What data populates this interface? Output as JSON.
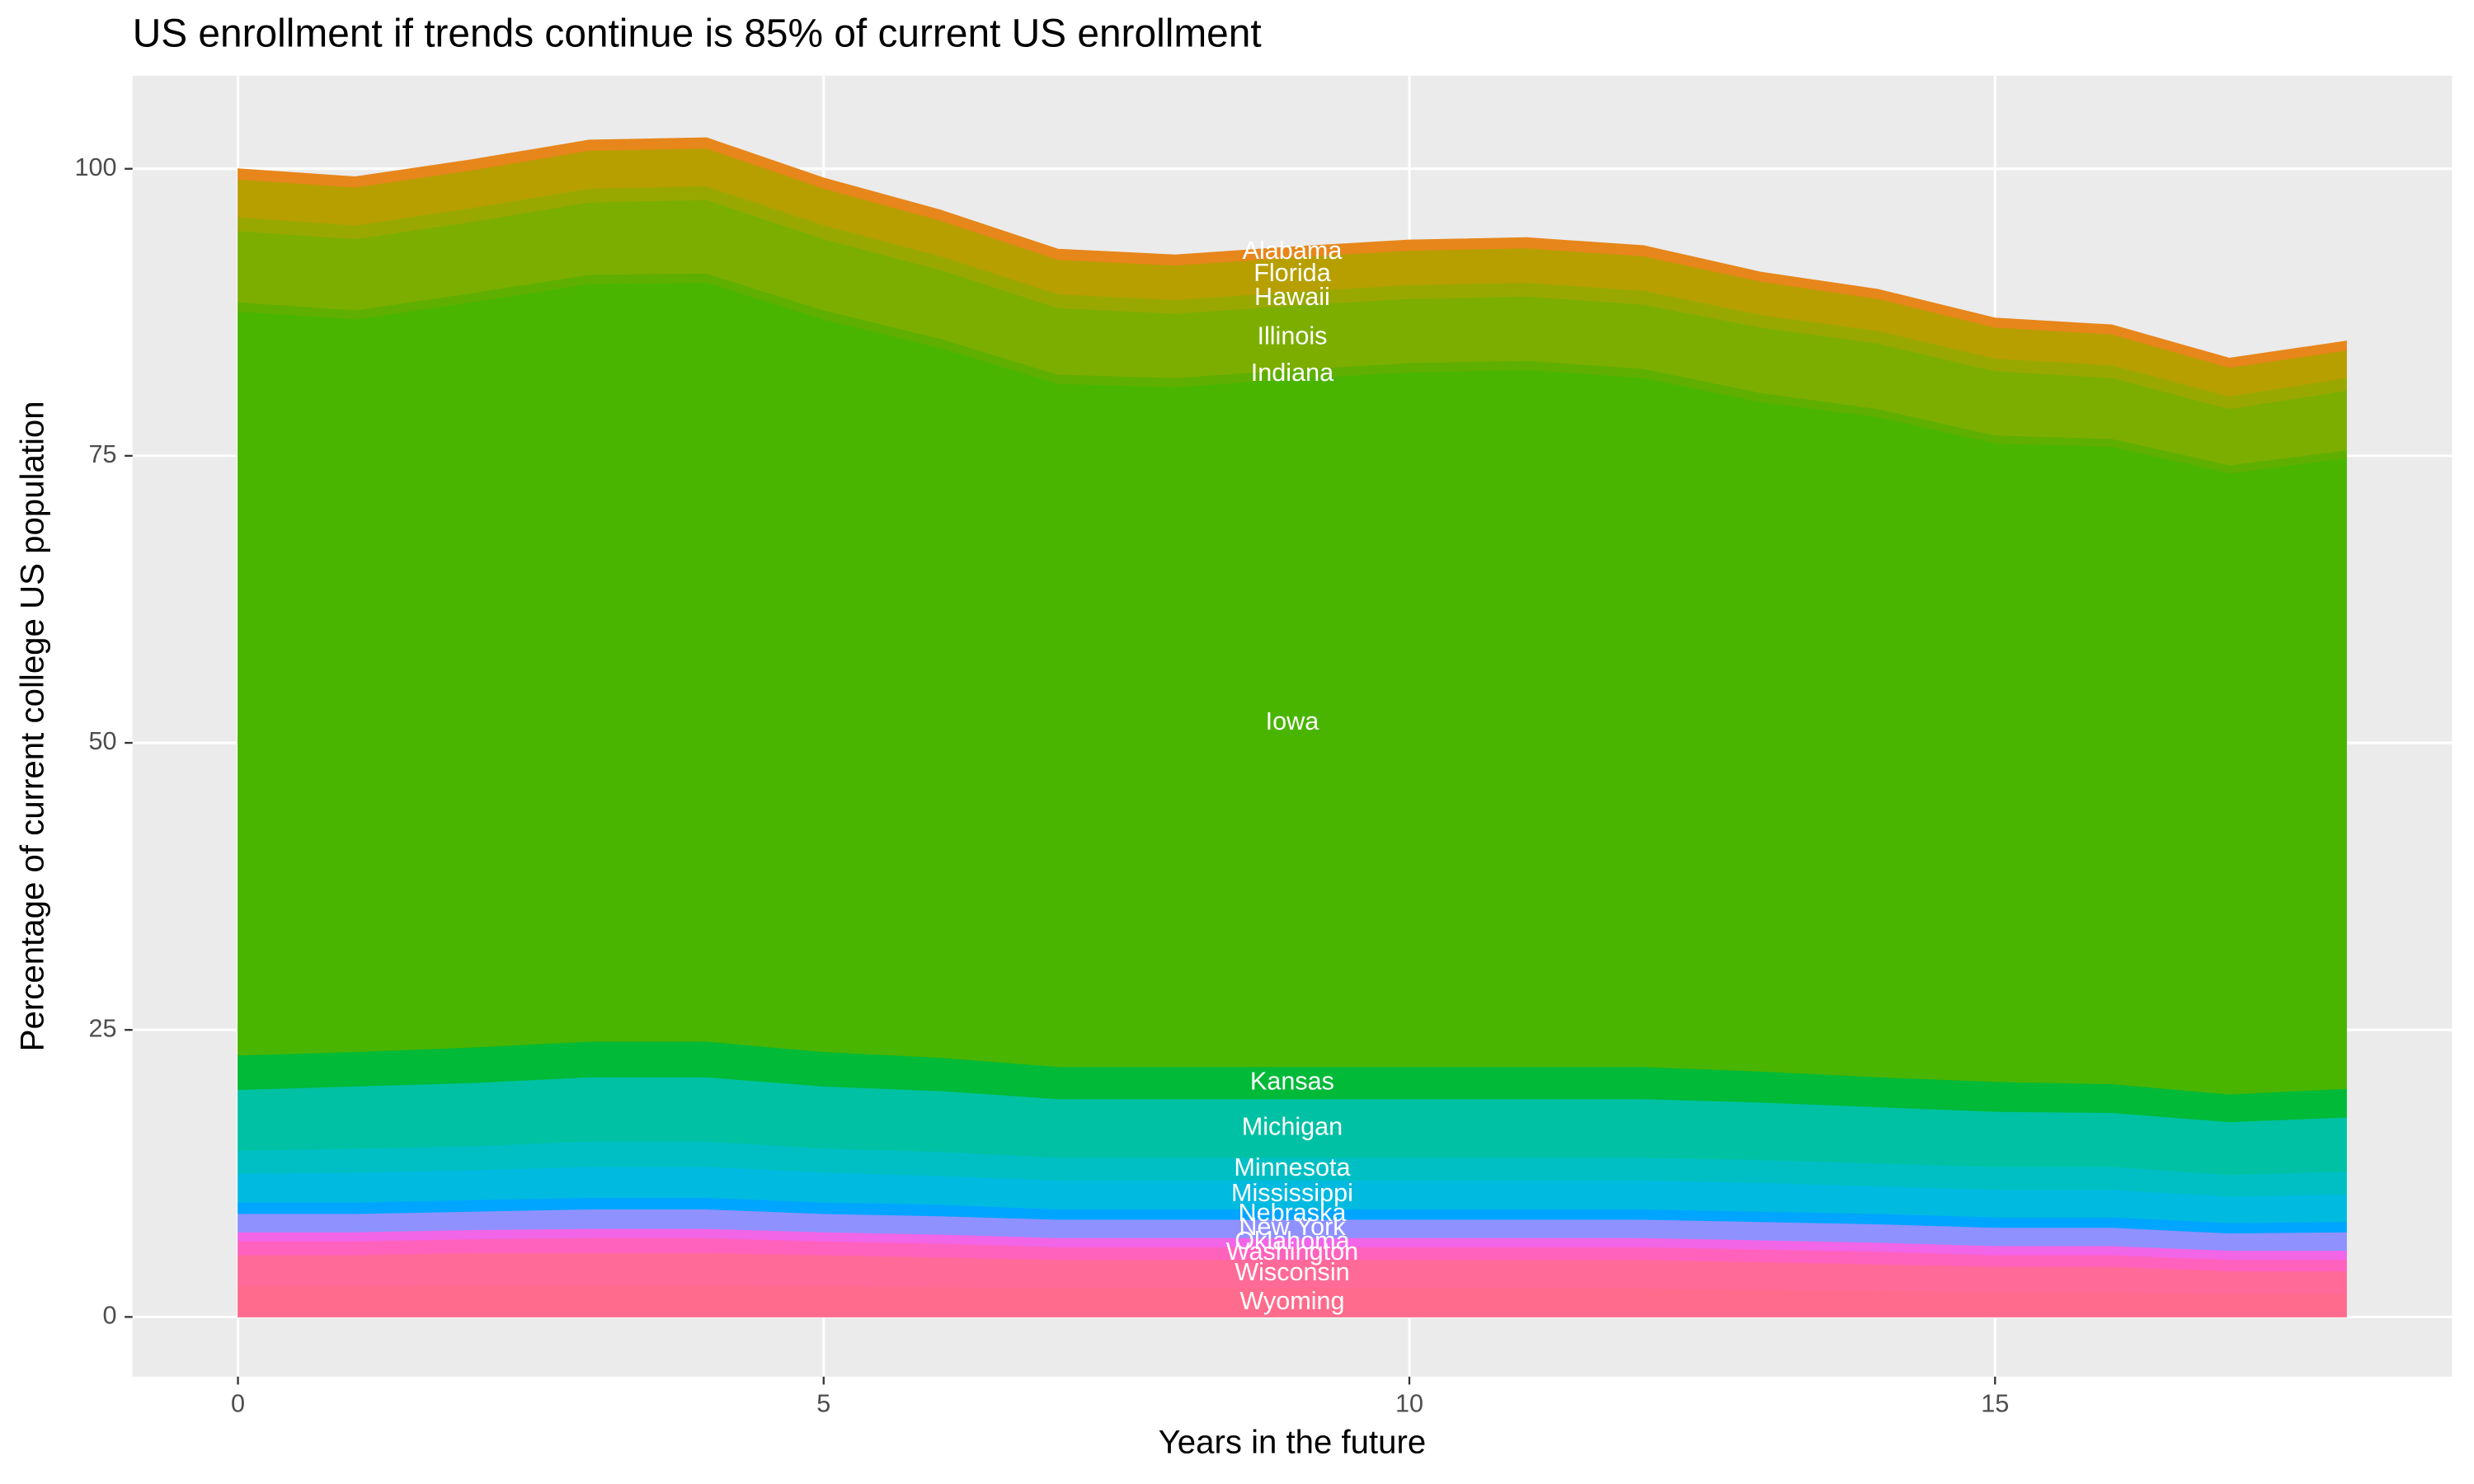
{
  "chart_data": {
    "type": "stacked_area",
    "title": "US enrollment if trends continue is 85% of current US enrollment",
    "x_label": "Years in the future",
    "y_label": "Percentage of current college US population",
    "x": [
      0,
      1,
      2,
      3,
      4,
      5,
      6,
      7,
      8,
      9,
      10,
      11,
      12,
      13,
      14,
      15,
      16,
      17,
      18
    ],
    "xlim": [
      -0.9,
      18.9
    ],
    "xticks": [
      0,
      5,
      10,
      15
    ],
    "ylim": [
      -5.2,
      108.1
    ],
    "yticks": [
      0,
      25,
      50,
      75,
      100
    ],
    "grid": true,
    "series": [
      {
        "name": "Wyoming",
        "color": "#FF6B8C",
        "values": [
          2.7,
          2.7,
          2.8,
          2.8,
          2.8,
          2.7,
          2.6,
          2.5,
          2.5,
          2.5,
          2.5,
          2.5,
          2.5,
          2.4,
          2.3,
          2.2,
          2.2,
          2.0,
          2.0
        ]
      },
      {
        "name": "Wisconsin",
        "color": "#FF6A98",
        "values": [
          2.7,
          2.7,
          2.8,
          2.8,
          2.8,
          2.7,
          2.6,
          2.5,
          2.5,
          2.5,
          2.5,
          2.5,
          2.5,
          2.4,
          2.3,
          2.2,
          2.2,
          2.0,
          2.0
        ]
      },
      {
        "name": "Washington",
        "color": "#FF62BC",
        "values": [
          1.2,
          1.2,
          1.2,
          1.3,
          1.3,
          1.2,
          1.2,
          1.1,
          1.1,
          1.1,
          1.1,
          1.1,
          1.1,
          1.1,
          1.1,
          1.0,
          1.0,
          1.0,
          1.0
        ]
      },
      {
        "name": "Oklahoma",
        "color": "#F265E7",
        "values": [
          0.8,
          0.8,
          0.8,
          0.8,
          0.8,
          0.8,
          0.8,
          0.8,
          0.8,
          0.8,
          0.8,
          0.8,
          0.8,
          0.8,
          0.8,
          0.8,
          0.8,
          0.8,
          0.8
        ]
      },
      {
        "name": "New York",
        "color": "#8F91FF",
        "values": [
          1.6,
          1.6,
          1.6,
          1.7,
          1.7,
          1.6,
          1.6,
          1.6,
          1.6,
          1.6,
          1.6,
          1.6,
          1.6,
          1.6,
          1.6,
          1.6,
          1.6,
          1.5,
          1.6
        ]
      },
      {
        "name": "Nebraska",
        "color": "#00A5FF",
        "values": [
          1.0,
          1.0,
          1.0,
          1.0,
          1.0,
          1.0,
          1.0,
          0.9,
          0.9,
          0.9,
          0.9,
          0.9,
          0.9,
          0.9,
          0.9,
          0.9,
          0.9,
          0.9,
          0.9
        ]
      },
      {
        "name": "Mississippi",
        "color": "#00BAE0",
        "values": [
          2.5,
          2.6,
          2.6,
          2.7,
          2.7,
          2.6,
          2.5,
          2.5,
          2.5,
          2.5,
          2.5,
          2.5,
          2.5,
          2.5,
          2.4,
          2.4,
          2.4,
          2.3,
          2.4
        ]
      },
      {
        "name": "Minnesota",
        "color": "#00BFC4",
        "values": [
          2.0,
          2.1,
          2.1,
          2.2,
          2.2,
          2.1,
          2.1,
          2.0,
          2.0,
          2.0,
          2.0,
          2.0,
          2.0,
          2.0,
          2.0,
          2.0,
          2.0,
          1.9,
          2.0
        ]
      },
      {
        "name": "Michigan",
        "color": "#00C1A3",
        "values": [
          5.3,
          5.4,
          5.5,
          5.6,
          5.6,
          5.4,
          5.3,
          5.1,
          5.1,
          5.1,
          5.1,
          5.1,
          5.1,
          5.0,
          4.9,
          4.8,
          4.7,
          4.6,
          4.7
        ]
      },
      {
        "name": "Kansas",
        "color": "#00BA38",
        "values": [
          3.0,
          3.0,
          3.1,
          3.1,
          3.1,
          3.0,
          2.9,
          2.8,
          2.8,
          2.8,
          2.8,
          2.8,
          2.8,
          2.7,
          2.6,
          2.6,
          2.5,
          2.4,
          2.5
        ]
      },
      {
        "name": "Iowa",
        "color": "#49B500",
        "values": [
          64.8,
          63.8,
          64.9,
          66.0,
          66.1,
          63.8,
          61.8,
          59.5,
          59.2,
          59.9,
          60.5,
          60.7,
          60.0,
          58.3,
          57.5,
          55.6,
          55.5,
          54.1,
          54.9
        ]
      },
      {
        "name": "Indiana",
        "color": "#5FAF00",
        "values": [
          0.8,
          0.8,
          0.8,
          0.8,
          0.8,
          0.8,
          0.8,
          0.8,
          0.8,
          0.8,
          0.8,
          0.8,
          0.8,
          0.8,
          0.7,
          0.7,
          0.7,
          0.7,
          0.7
        ]
      },
      {
        "name": "Illinois",
        "color": "#7CAE00",
        "values": [
          6.2,
          6.2,
          6.2,
          6.3,
          6.4,
          6.2,
          6.0,
          5.8,
          5.6,
          5.6,
          5.6,
          5.6,
          5.6,
          5.7,
          5.7,
          5.6,
          5.3,
          4.9,
          5.2
        ]
      },
      {
        "name": "Hawaii",
        "color": "#99A800",
        "values": [
          1.2,
          1.2,
          1.2,
          1.2,
          1.2,
          1.2,
          1.2,
          1.2,
          1.2,
          1.2,
          1.2,
          1.2,
          1.2,
          1.1,
          1.1,
          1.1,
          1.1,
          1.1,
          1.1
        ]
      },
      {
        "name": "Florida",
        "color": "#B79F00",
        "values": [
          3.3,
          3.3,
          3.3,
          3.3,
          3.3,
          3.2,
          3.1,
          3.0,
          3.0,
          3.0,
          3.0,
          3.0,
          3.0,
          2.9,
          2.8,
          2.7,
          2.7,
          2.5,
          2.4
        ]
      },
      {
        "name": "Alabama",
        "color": "#E7861B",
        "values": [
          0.9,
          0.9,
          0.9,
          0.9,
          0.9,
          0.9,
          0.9,
          0.9,
          0.9,
          0.9,
          0.9,
          0.9,
          0.9,
          0.8,
          0.8,
          0.8,
          0.8,
          0.8,
          0.8
        ]
      }
    ]
  }
}
